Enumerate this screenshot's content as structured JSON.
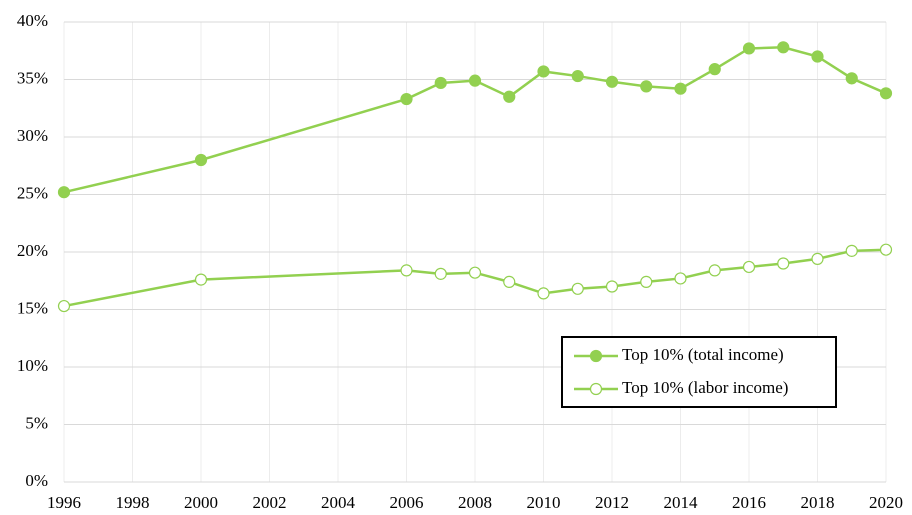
{
  "chart_data": {
    "type": "line",
    "x": [
      1996,
      2000,
      2006,
      2007,
      2008,
      2009,
      2010,
      2011,
      2012,
      2013,
      2014,
      2015,
      2016,
      2017,
      2018,
      2019,
      2020
    ],
    "series": [
      {
        "name": "Top 10% (total income)",
        "color": "#92d050",
        "marker_filled": true,
        "values": [
          25.2,
          28.0,
          33.3,
          34.7,
          34.9,
          33.5,
          35.7,
          35.3,
          34.8,
          34.4,
          34.2,
          35.9,
          37.7,
          37.8,
          37.0,
          35.1,
          33.8
        ]
      },
      {
        "name": "Top 10% (labor income)",
        "color": "#92d050",
        "marker_filled": false,
        "values": [
          15.3,
          17.6,
          18.4,
          18.1,
          18.2,
          17.4,
          16.4,
          16.8,
          17.0,
          17.4,
          17.7,
          18.4,
          18.7,
          19.0,
          19.4,
          20.1,
          20.2
        ]
      }
    ],
    "xlim": [
      1996,
      2020
    ],
    "xticks": [
      1996,
      1998,
      2000,
      2002,
      2004,
      2006,
      2008,
      2010,
      2012,
      2014,
      2016,
      2018,
      2020
    ],
    "ylim": [
      0,
      40
    ],
    "yticks": [
      {
        "value": 0,
        "label": "0%"
      },
      {
        "value": 5,
        "label": "5%"
      },
      {
        "value": 10,
        "label": "10%"
      },
      {
        "value": 15,
        "label": "15%"
      },
      {
        "value": 20,
        "label": "20%"
      },
      {
        "value": 25,
        "label": "25%"
      },
      {
        "value": 30,
        "label": "30%"
      },
      {
        "value": 35,
        "label": "35%"
      },
      {
        "value": 40,
        "label": "40%"
      }
    ],
    "grid": true,
    "legend": "lower right"
  }
}
